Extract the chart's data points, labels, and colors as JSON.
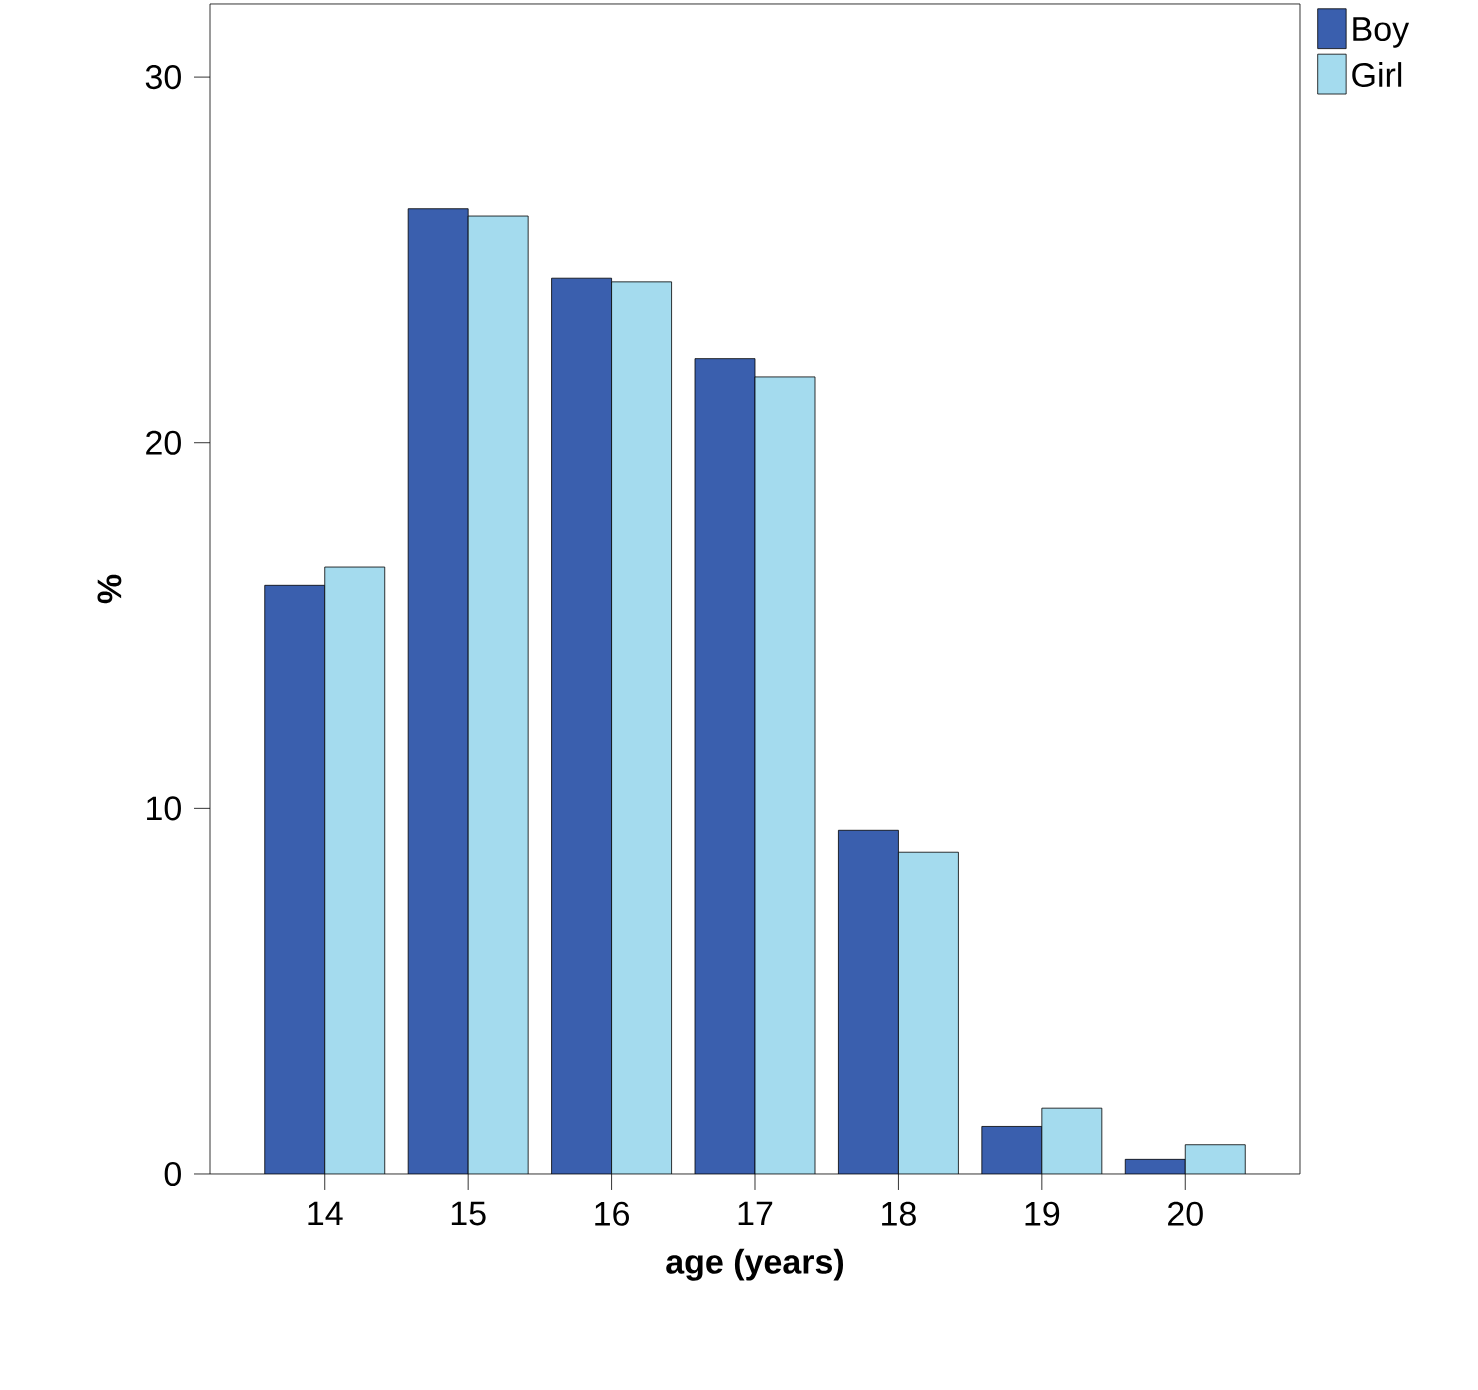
{
  "chart_data": {
    "type": "bar",
    "xlabel": "age (years)",
    "ylabel": "%",
    "categories": [
      "14",
      "15",
      "16",
      "17",
      "18",
      "19",
      "20"
    ],
    "series": [
      {
        "name": "Boy",
        "color": "#3a5fae",
        "values": [
          16.1,
          26.4,
          24.5,
          22.3,
          9.4,
          1.3,
          0.4
        ]
      },
      {
        "name": "Girl",
        "color": "#a4dbee",
        "values": [
          16.6,
          26.2,
          24.4,
          21.8,
          8.8,
          1.8,
          0.8
        ]
      }
    ],
    "ylim": [
      0,
      32
    ],
    "yticks": [
      0,
      10,
      20,
      30
    ],
    "legend": "top right"
  }
}
